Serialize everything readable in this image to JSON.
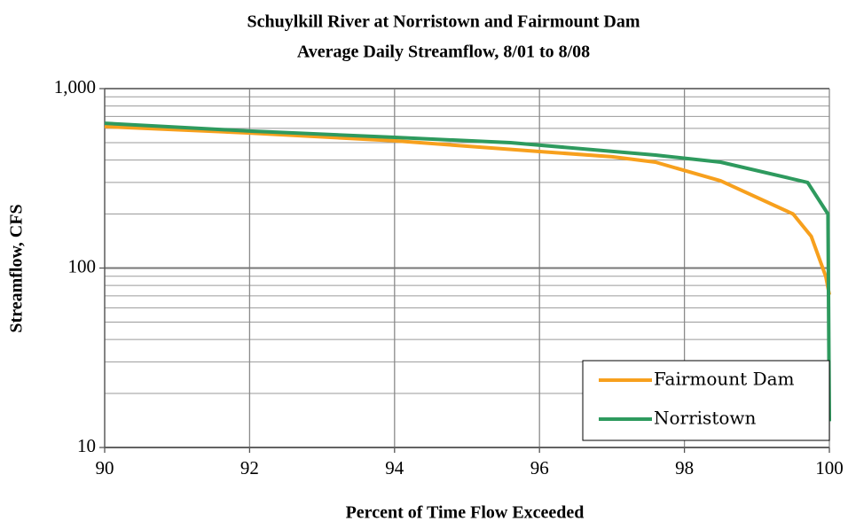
{
  "chart_data": {
    "type": "line",
    "title": "Schuylkill River at Norristown and Fairmount Dam",
    "subtitle": "Average Daily Streamflow, 8/01 to 8/08",
    "x_label": "Percent of Time Flow Exceeded",
    "y_label": "Streamflow, CFS",
    "xlim": [
      90,
      100
    ],
    "xticks": [
      90,
      92,
      94,
      96,
      98,
      100
    ],
    "ylim": [
      10,
      1000
    ],
    "yticks": [
      10,
      100,
      {
        "value": 1000,
        "label": "1,000"
      }
    ],
    "yminorticks": [
      20,
      30,
      40,
      50,
      60,
      70,
      80,
      90,
      200,
      300,
      400,
      500,
      600,
      700,
      800,
      900
    ],
    "ylog": true,
    "grid": true,
    "legend": "lower right",
    "series": [
      {
        "name": "Fairmount Dam",
        "color": "#f7a01d",
        "x": [
          90,
          92,
          94,
          96,
          97,
          97.6,
          98.5,
          99.5,
          99.75,
          99.95,
          100
        ],
        "values": [
          615,
          566,
          512,
          446,
          417,
          389,
          306,
          200,
          150,
          90,
          71
        ]
      },
      {
        "name": "Norristown",
        "color": "#2e9a5e",
        "x": [
          90,
          92,
          94,
          95.6,
          97.6,
          98.5,
          99.7,
          99.98,
          100
        ],
        "values": [
          641,
          580,
          535,
          500,
          426,
          389,
          300,
          200,
          14
        ]
      }
    ]
  }
}
